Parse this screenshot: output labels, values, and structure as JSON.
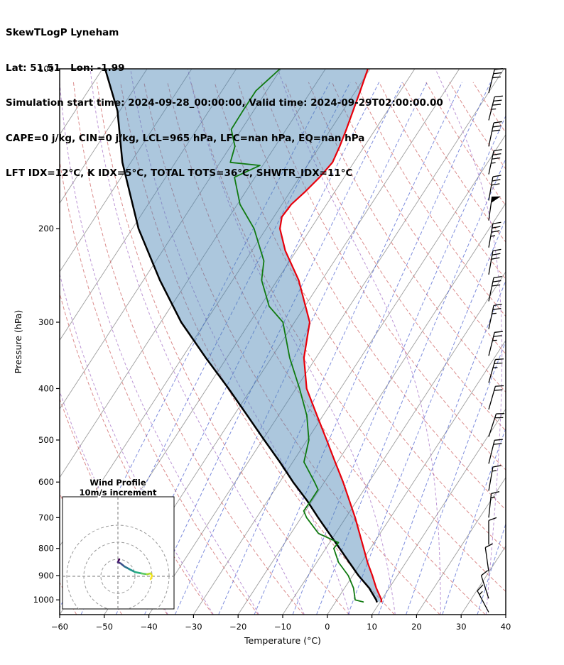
{
  "header": {
    "line1": "SkewTLogP Lyneham",
    "line2": "Lat: 51.51   Lon: -1.99",
    "line3": "Simulation start time: 2024-09-28_00:00:00, Valid time: 2024-09-29T02:00:00.00",
    "line4": "CAPE=0 j/kg, CIN=0 j/kg, LCL=965 hPa, LFC=nan hPa, EQ=nan hPa",
    "line5": "LFT IDX=12°C, K IDX=5°C, TOTAL TOTS=36°C, SHWTR_IDX=11°C"
  },
  "chart_data": {
    "type": "skewt-logp",
    "title": "SkewTLogP Lyneham",
    "station": {
      "lat": 51.51,
      "lon": -1.99
    },
    "sim_start": "2024-09-28_00:00:00",
    "valid_time": "2024-09-29T02:00:00.00",
    "indices": {
      "CAPE_j_kg": 0,
      "CIN_j_kg": 0,
      "LCL_hPa": 965,
      "LFC_hPa": "nan",
      "EQ_hPa": "nan",
      "LFT_IDX_C": 12,
      "K_IDX_C": 5,
      "TOTAL_TOTS_C": 36,
      "SHWTR_IDX_C": 11
    },
    "xlabel": "Temperature (°C)",
    "ylabel": "Pressure (hPa)",
    "x_ticks": [
      -60,
      -50,
      -40,
      -30,
      -20,
      -10,
      0,
      10,
      20,
      30,
      40
    ],
    "y_ticks": [
      100,
      200,
      300,
      400,
      500,
      600,
      700,
      800,
      900,
      1000
    ],
    "xlim": [
      -60,
      40
    ],
    "plim": [
      100,
      1066
    ],
    "series": {
      "temperature_c": [
        [
          1008,
          10.2
        ],
        [
          1000,
          10.0
        ],
        [
          950,
          7.1
        ],
        [
          900,
          4.4
        ],
        [
          850,
          1.4
        ],
        [
          800,
          -1.5
        ],
        [
          750,
          -4.6
        ],
        [
          700,
          -7.9
        ],
        [
          650,
          -11.7
        ],
        [
          600,
          -15.8
        ],
        [
          550,
          -20.5
        ],
        [
          500,
          -25.6
        ],
        [
          450,
          -31.3
        ],
        [
          400,
          -37.6
        ],
        [
          350,
          -42.7
        ],
        [
          300,
          -46.6
        ],
        [
          250,
          -55.2
        ],
        [
          220,
          -62.5
        ],
        [
          200,
          -66.9
        ],
        [
          190,
          -68.2
        ],
        [
          180,
          -67.9
        ],
        [
          170,
          -66.6
        ],
        [
          160,
          -65.5
        ],
        [
          150,
          -64.8
        ],
        [
          140,
          -65.5
        ],
        [
          130,
          -66.5
        ],
        [
          120,
          -67.7
        ],
        [
          110,
          -69.0
        ],
        [
          100,
          -70.5
        ]
      ],
      "dewpoint_c": [
        [
          1009,
          6.2
        ],
        [
          1000,
          4.1
        ],
        [
          950,
          2.0
        ],
        [
          900,
          -1.0
        ],
        [
          850,
          -5.1
        ],
        [
          800,
          -8.2
        ],
        [
          780,
          -8.0
        ],
        [
          750,
          -13.8
        ],
        [
          700,
          -18.8
        ],
        [
          680,
          -20.4
        ],
        [
          650,
          -20.3
        ],
        [
          620,
          -20.3
        ],
        [
          600,
          -22.2
        ],
        [
          550,
          -27.5
        ],
        [
          500,
          -29.6
        ],
        [
          450,
          -33.6
        ],
        [
          400,
          -39.2
        ],
        [
          350,
          -45.9
        ],
        [
          300,
          -52.6
        ],
        [
          280,
          -58.0
        ],
        [
          250,
          -63.5
        ],
        [
          230,
          -65.8
        ],
        [
          200,
          -72.7
        ],
        [
          180,
          -79.4
        ],
        [
          160,
          -84.6
        ],
        [
          152,
          -80.6
        ],
        [
          150,
          -87.7
        ],
        [
          140,
          -89.0
        ],
        [
          130,
          -92.3
        ],
        [
          120,
          -92.4
        ],
        [
          110,
          -92.4
        ],
        [
          100,
          -90.2
        ]
      ],
      "parcel_c": [
        [
          1008,
          9.2
        ],
        [
          1000,
          8.8
        ],
        [
          950,
          5.5
        ],
        [
          900,
          1.3
        ],
        [
          850,
          -2.7
        ],
        [
          800,
          -6.9
        ],
        [
          750,
          -11.4
        ],
        [
          700,
          -16.2
        ],
        [
          650,
          -21.2
        ],
        [
          600,
          -27.0
        ],
        [
          550,
          -32.9
        ],
        [
          500,
          -39.6
        ],
        [
          450,
          -46.9
        ],
        [
          400,
          -55.1
        ],
        [
          350,
          -64.7
        ],
        [
          300,
          -75.4
        ],
        [
          250,
          -86.3
        ],
        [
          200,
          -98.6
        ],
        [
          150,
          -111.9
        ],
        [
          120,
          -120.5
        ],
        [
          100,
          -129.4
        ]
      ]
    },
    "background": {
      "isotherm_step_c": 10,
      "isotherm_range_c": [
        -140,
        40
      ],
      "dry_adiabats_theta_k": [
        213,
        223,
        233,
        243,
        253,
        263,
        273,
        283,
        293,
        303,
        313,
        323,
        333,
        343,
        353,
        363,
        373,
        383,
        393,
        403,
        413,
        423,
        433
      ],
      "mixing_ratio_g_kg": [
        0.01,
        0.02,
        0.05,
        0.1,
        0.2,
        0.5,
        1,
        2,
        3,
        5,
        8,
        12,
        20,
        32
      ],
      "moist_adiabat_thw_c": [
        -40,
        -30,
        -20,
        -10,
        0,
        10,
        20,
        30
      ]
    },
    "colors": {
      "temperature": "#e8000b",
      "dewpoint": "#107a10",
      "parcel": "#000000",
      "shade": "#4682b4",
      "isotherm": "#9e9e9e",
      "dry_adiabat": "#d06767",
      "mixing_ratio": "#4a5fd0",
      "moist_adiabat": "#9a5fc0",
      "barb": "#000000"
    },
    "wind_barbs": [
      [
        111,
        30,
        14
      ],
      [
        125,
        35,
        14
      ],
      [
        140,
        30,
        12
      ],
      [
        158,
        35,
        12
      ],
      [
        177,
        30,
        10
      ],
      [
        193,
        50,
        8
      ],
      [
        217,
        35,
        10
      ],
      [
        244,
        30,
        10
      ],
      [
        274,
        30,
        12
      ],
      [
        309,
        25,
        12
      ],
      [
        347,
        25,
        14
      ],
      [
        390,
        25,
        16
      ],
      [
        438,
        20,
        16
      ],
      [
        493,
        20,
        18
      ],
      [
        554,
        20,
        14
      ],
      [
        623,
        15,
        10
      ],
      [
        700,
        15,
        6
      ],
      [
        787,
        10,
        0
      ],
      [
        884,
        10,
        -8
      ],
      [
        994,
        10,
        -18
      ],
      [
        1055,
        15,
        -28
      ]
    ],
    "hodograph": {
      "title_line1": "Wind Profile",
      "title_line2": "10m/s increment",
      "rings_ms": [
        10,
        20,
        30
      ],
      "trace_uv_ms": [
        [
          0.8,
          10
        ],
        [
          0,
          8.3
        ],
        [
          1.7,
          7.5
        ],
        [
          3.8,
          5.8
        ],
        [
          6.7,
          4.2
        ],
        [
          10,
          2.5
        ],
        [
          13.8,
          1.7
        ],
        [
          17.1,
          1.2
        ],
        [
          19.2,
          1.7
        ],
        [
          20,
          0.4
        ],
        [
          19.2,
          -1.7
        ]
      ],
      "trace_colors": [
        "#440154",
        "#472d7b",
        "#3b528b",
        "#2c728e",
        "#21918c",
        "#27ad81",
        "#5ec962",
        "#aadc32",
        "#d8e219",
        "#fde725"
      ]
    }
  }
}
